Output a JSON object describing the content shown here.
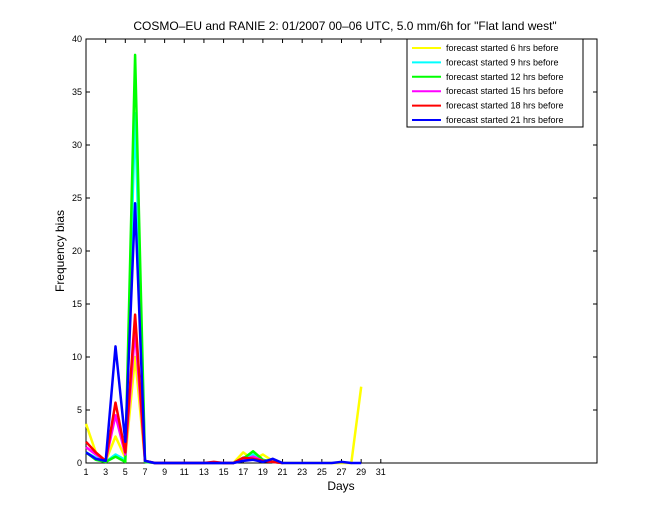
{
  "chart_data": {
    "type": "line",
    "title": "COSMO–EU and RANIE 2: 01/2007 00–06 UTC, 5.0 mm/6h for \"Flat land west\"",
    "xlabel": "Days",
    "ylabel": "Frequency bias",
    "xlim": [
      1,
      53
    ],
    "ylim": [
      0,
      40
    ],
    "xticks": [
      1,
      3,
      5,
      7,
      9,
      11,
      13,
      15,
      17,
      19,
      21,
      23,
      25,
      27,
      29,
      31
    ],
    "yticks": [
      0,
      5,
      10,
      15,
      20,
      25,
      30,
      35,
      40
    ],
    "grid": false,
    "legend_position": "top-right",
    "series": [
      {
        "name": "forecast started 6 hrs before",
        "color": "#ffff00",
        "points": [
          [
            1,
            3.7
          ],
          [
            2,
            1.0
          ],
          [
            3,
            0.2
          ],
          [
            4,
            2.5
          ],
          [
            5,
            0.5
          ],
          [
            6,
            10.0
          ],
          [
            7,
            0.2
          ],
          [
            8,
            0
          ],
          [
            9,
            0
          ],
          [
            10,
            0
          ],
          [
            11,
            0
          ],
          [
            12,
            0
          ],
          [
            13,
            0
          ],
          [
            14,
            0
          ],
          [
            15,
            0
          ],
          [
            16,
            0
          ],
          [
            17,
            1.0
          ],
          [
            18,
            0.3
          ],
          [
            19,
            0.8
          ],
          [
            20,
            0.2
          ],
          [
            21,
            0
          ],
          [
            22,
            0
          ],
          [
            23,
            0
          ],
          [
            24,
            0
          ],
          [
            25,
            0
          ],
          [
            26,
            0
          ],
          [
            27,
            0
          ],
          [
            28,
            0
          ],
          [
            29,
            7.2
          ]
        ]
      },
      {
        "name": "forecast started 9 hrs before",
        "color": "#00ffff",
        "points": [
          [
            1,
            1.0
          ],
          [
            2,
            0.5
          ],
          [
            3,
            0.1
          ],
          [
            4,
            0.8
          ],
          [
            5,
            0.3
          ],
          [
            6,
            33.0
          ],
          [
            7,
            0.1
          ],
          [
            8,
            0
          ],
          [
            9,
            0
          ],
          [
            10,
            0
          ],
          [
            11,
            0
          ],
          [
            12,
            0
          ],
          [
            13,
            0
          ],
          [
            14,
            0
          ],
          [
            15,
            0
          ],
          [
            16,
            0
          ],
          [
            17,
            0.5
          ],
          [
            18,
            0.8
          ],
          [
            19,
            0.3
          ],
          [
            20,
            0.1
          ],
          [
            21,
            0
          ]
        ]
      },
      {
        "name": "forecast started 12 hrs before",
        "color": "#00ff00",
        "points": [
          [
            1,
            1.0
          ],
          [
            2,
            0.3
          ],
          [
            3,
            0.1
          ],
          [
            4,
            0.6
          ],
          [
            5,
            0.1
          ],
          [
            6,
            38.5
          ],
          [
            7,
            0.1
          ],
          [
            8,
            0
          ],
          [
            9,
            0
          ],
          [
            10,
            0
          ],
          [
            11,
            0
          ],
          [
            12,
            0
          ],
          [
            13,
            0
          ],
          [
            14,
            0
          ],
          [
            15,
            0
          ],
          [
            16,
            0
          ],
          [
            17,
            0.4
          ],
          [
            18,
            1.1
          ],
          [
            19,
            0.3
          ],
          [
            20,
            0.1
          ],
          [
            21,
            0
          ]
        ]
      },
      {
        "name": "forecast started 15 hrs before",
        "color": "#ff00ff",
        "points": [
          [
            1,
            1.5
          ],
          [
            2,
            0.8
          ],
          [
            3,
            0.2
          ],
          [
            4,
            4.5
          ],
          [
            5,
            0.8
          ],
          [
            6,
            12.5
          ],
          [
            7,
            0.2
          ],
          [
            8,
            0
          ],
          [
            9,
            0
          ],
          [
            10,
            0
          ],
          [
            11,
            0
          ],
          [
            12,
            0
          ],
          [
            13,
            0
          ],
          [
            14,
            0
          ],
          [
            15,
            0
          ],
          [
            16,
            0
          ],
          [
            17,
            0.3
          ],
          [
            18,
            0.6
          ],
          [
            19,
            0.2
          ],
          [
            20,
            0.1
          ],
          [
            21,
            0
          ]
        ]
      },
      {
        "name": "forecast started 18 hrs before",
        "color": "#ff0000",
        "points": [
          [
            1,
            2.0
          ],
          [
            2,
            1.0
          ],
          [
            3,
            0.2
          ],
          [
            4,
            5.7
          ],
          [
            5,
            1.0
          ],
          [
            6,
            14.0
          ],
          [
            7,
            0.2
          ],
          [
            8,
            0
          ],
          [
            9,
            0
          ],
          [
            10,
            0
          ],
          [
            11,
            0
          ],
          [
            12,
            0
          ],
          [
            13,
            0
          ],
          [
            14,
            0.1
          ],
          [
            15,
            0
          ],
          [
            16,
            0
          ],
          [
            17,
            0.5
          ],
          [
            18,
            0.4
          ],
          [
            19,
            0.2
          ],
          [
            20,
            0.1
          ],
          [
            21,
            0
          ]
        ]
      },
      {
        "name": "forecast started 21 hrs before",
        "color": "#0000ff",
        "points": [
          [
            1,
            1.0
          ],
          [
            2,
            0.4
          ],
          [
            3,
            0.2
          ],
          [
            4,
            11.0
          ],
          [
            5,
            2.0
          ],
          [
            6,
            24.5
          ],
          [
            7,
            0.2
          ],
          [
            8,
            0
          ],
          [
            9,
            0
          ],
          [
            10,
            0
          ],
          [
            11,
            0
          ],
          [
            12,
            0
          ],
          [
            13,
            0
          ],
          [
            14,
            0
          ],
          [
            15,
            0
          ],
          [
            16,
            0
          ],
          [
            17,
            0.2
          ],
          [
            18,
            0.3
          ],
          [
            19,
            0.1
          ],
          [
            20,
            0.4
          ],
          [
            21,
            0
          ],
          [
            22,
            0
          ],
          [
            23,
            0
          ],
          [
            24,
            0
          ],
          [
            25,
            0
          ],
          [
            26,
            0
          ],
          [
            27,
            0.1
          ],
          [
            28,
            0
          ],
          [
            29,
            0
          ]
        ]
      }
    ]
  }
}
